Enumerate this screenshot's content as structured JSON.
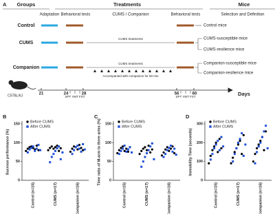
{
  "panel_a": {
    "label": "A",
    "headers": {
      "groups": "Groups",
      "treatments": "Treatments",
      "mice": "Mice"
    },
    "subheaders": [
      "Adaptation",
      "Behavioral tests",
      "CUMS / Companion",
      "Behavioral tests",
      "Selection and Definition"
    ],
    "groups": [
      "Control",
      "CUMS",
      "Companion"
    ],
    "cums_treatments": [
      "CUMS treatments",
      "CUMS treatments"
    ],
    "companion_note": "Accompanied with companion for 50 min",
    "mice": [
      "Control mice",
      "CUMS-susceptible mice",
      "CUMS-resilience mice",
      "Companion-susceptible mice",
      "Companion-resilience mice"
    ],
    "strain": "C57BL/6J",
    "days": [
      "21",
      "24",
      "28",
      "56",
      "60"
    ],
    "days_label": "Days",
    "tests": [
      "SPT YMT FST",
      "SPT YMT FST"
    ]
  },
  "chart_data": [
    {
      "type": "dot",
      "label": "B",
      "ylabel": "Sucrose performance (%)",
      "categories": [
        "Control (n=15)",
        "CUMS (n=17)",
        "Companion (n=16)"
      ],
      "series": [
        {
          "name": "Before CUMS",
          "color": "#000000",
          "values": [
            [
              78,
              84,
              88,
              90,
              86,
              82,
              92,
              80
            ],
            [
              80,
              86,
              90,
              84,
              88,
              92,
              78,
              85
            ],
            [
              76,
              84,
              90,
              88,
              82,
              94,
              86,
              80
            ]
          ]
        },
        {
          "name": "After CUMS",
          "color": "#1f4fd6",
          "values": [
            [
              74,
              82,
              86,
              90,
              78,
              84,
              94,
              80
            ],
            [
              48,
              62,
              70,
              78,
              85,
              90,
              56,
              74
            ],
            [
              70,
              80,
              88,
              92,
              84,
              76,
              96,
              82
            ]
          ]
        }
      ],
      "ylim": [
        0,
        150
      ],
      "yticks": [
        0,
        50,
        100,
        150
      ]
    },
    {
      "type": "dot",
      "label": "C",
      "ylabel": "Time ratio of M-arm to three arms (%)",
      "categories": [
        "Control (n=15)",
        "CUMS (n=17)",
        "Companion (n=16)"
      ],
      "series": [
        {
          "name": "Before CUMS",
          "color": "#000000",
          "values": [
            [
              72,
              80,
              86,
              90,
              78,
              84,
              76,
              88
            ],
            [
              70,
              78,
              84,
              88,
              80,
              92,
              74,
              82
            ],
            [
              66,
              74,
              82,
              88,
              78,
              84,
              90,
              72
            ]
          ]
        },
        {
          "name": "After CUMS",
          "color": "#1f4fd6",
          "values": [
            [
              70,
              78,
              84,
              92,
              76,
              82,
              88,
              74
            ],
            [
              36,
              50,
              62,
              72,
              80,
              90,
              98,
              56
            ],
            [
              62,
              70,
              80,
              86,
              92,
              76,
              84,
              68
            ]
          ]
        }
      ],
      "ylim": [
        0,
        150
      ],
      "yticks": [
        0,
        50,
        100,
        150
      ]
    },
    {
      "type": "dot",
      "label": "D",
      "ylabel": "Immobility Time (seconds)",
      "categories": [
        "Control (n=15)",
        "CUMS (n=17)",
        "Companion (n=16)"
      ],
      "series": [
        {
          "name": "Before CUMS",
          "color": "#000000",
          "values": [
            [
              90,
              130,
              160,
              180,
              200,
              150,
              220,
              170
            ],
            [
              90,
              120,
              150,
              170,
              190,
              210,
              140,
              240
            ],
            [
              100,
              140,
              170,
              190,
              210,
              230,
              160,
              260
            ]
          ]
        },
        {
          "name": "After CUMS",
          "color": "#1f4fd6",
          "values": [
            [
              110,
              140,
              170,
              190,
              210,
              160,
              230,
              180
            ],
            [
              100,
              140,
              170,
              200,
              220,
              250,
              130,
              190
            ],
            [
              90,
              150,
              180,
              200,
              230,
              260,
              290,
              170
            ]
          ]
        }
      ],
      "ylim": [
        0,
        300
      ],
      "yticks": [
        0,
        100,
        200,
        300
      ]
    }
  ]
}
